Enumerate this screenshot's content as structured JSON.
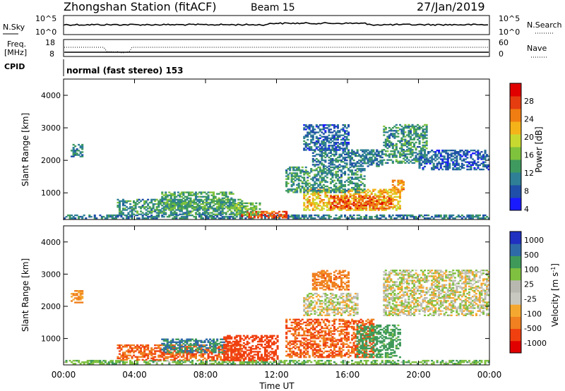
{
  "header": {
    "station": "Zhongshan Station (fitACF)",
    "beam": "Beam 15",
    "date": "27/Jan/2019"
  },
  "noise_panel": {
    "left_label": "N.Sky",
    "right_label": "N.Search",
    "left_ticks": [
      "10^5",
      "10^0"
    ],
    "right_ticks": [
      "10^5",
      "10^0"
    ]
  },
  "freq_panel": {
    "left_label_1": "Freq.",
    "left_label_2": "[MHz]",
    "left_ticks": [
      "18",
      "8"
    ],
    "right_label": "Nave",
    "right_ticks": [
      "60",
      "0"
    ]
  },
  "cpid_panel": {
    "label": "CPID",
    "text": "normal (fast stereo) 153"
  },
  "colors": {
    "power": [
      "#1a1aff",
      "#1f4fa8",
      "#2f7f96",
      "#3e9a5e",
      "#7fc23c",
      "#c7d930",
      "#f5b31a",
      "#f07d12",
      "#e53c10",
      "#e00000"
    ],
    "velocity": [
      "#e00000",
      "#f04010",
      "#f08020",
      "#f5a830",
      "#c8c8c0",
      "#b8b8b0",
      "#7fc040",
      "#3f9a5a",
      "#2f6aa8",
      "#2030c0"
    ]
  },
  "chart_data": [
    {
      "type": "heatmap",
      "title": "Power",
      "ylabel": "Slant Range [km]",
      "ylim": [
        180,
        4500
      ],
      "yticks": [
        1000,
        2000,
        3000,
        4000
      ],
      "xlim": [
        0,
        24
      ],
      "colorbar": {
        "label": "Power [dB]",
        "range": [
          0,
          32
        ],
        "ticks": [
          "4",
          "8",
          "12",
          "16",
          "20",
          "24",
          "28"
        ]
      },
      "regions": [
        {
          "t0": 0.4,
          "t1": 1.0,
          "r0": 2100,
          "r1": 2500,
          "v": 8
        },
        {
          "t0": 0.0,
          "t1": 24.0,
          "r0": 200,
          "r1": 320,
          "v": 8
        },
        {
          "t0": 3.0,
          "t1": 10.0,
          "r0": 320,
          "r1": 800,
          "v": 10
        },
        {
          "t0": 5.5,
          "t1": 9.5,
          "r0": 500,
          "r1": 1000,
          "v": 12
        },
        {
          "t0": 10.0,
          "t1": 12.5,
          "r0": 220,
          "r1": 420,
          "v": 26
        },
        {
          "t0": 9.6,
          "t1": 11.0,
          "r0": 300,
          "r1": 700,
          "v": 14
        },
        {
          "t0": 13.5,
          "t1": 19.0,
          "r0": 450,
          "r1": 1100,
          "v": 20
        },
        {
          "t0": 15.0,
          "t1": 18.5,
          "r0": 500,
          "r1": 900,
          "v": 26
        },
        {
          "t0": 12.5,
          "t1": 17.0,
          "r0": 1000,
          "r1": 1800,
          "v": 10
        },
        {
          "t0": 14.0,
          "t1": 18.0,
          "r0": 1800,
          "r1": 2300,
          "v": 8
        },
        {
          "t0": 13.5,
          "t1": 16.0,
          "r0": 2300,
          "r1": 3100,
          "v": 6
        },
        {
          "t0": 18.0,
          "t1": 20.5,
          "r0": 1900,
          "r1": 3100,
          "v": 10
        },
        {
          "t0": 20.0,
          "t1": 24.0,
          "r0": 1700,
          "r1": 2300,
          "v": 6
        },
        {
          "t0": 18.5,
          "t1": 19.2,
          "r0": 1000,
          "r1": 1400,
          "v": 22
        }
      ]
    },
    {
      "type": "heatmap",
      "title": "Velocity",
      "ylabel": "Slant Range [km]",
      "xlabel": "Time UT",
      "ylim": [
        180,
        4500
      ],
      "yticks": [
        1000,
        2000,
        3000,
        4000
      ],
      "xlim": [
        0,
        24
      ],
      "xticks": [
        "00:00",
        "04:00",
        "08:00",
        "12:00",
        "16:00",
        "20:00",
        "00:00"
      ],
      "colorbar": {
        "label": "Velocity [m s^-1]",
        "ticks": [
          "1000",
          "500",
          "100",
          "25",
          "-25",
          "-100",
          "-500",
          "-1000"
        ]
      },
      "regions": [
        {
          "t0": 0.4,
          "t1": 1.0,
          "r0": 2100,
          "r1": 2500,
          "v": -120
        },
        {
          "t0": 0.0,
          "t1": 24.0,
          "r0": 200,
          "r1": 320,
          "v": 80
        },
        {
          "t0": 3.0,
          "t1": 10.0,
          "r0": 320,
          "r1": 800,
          "v": -200
        },
        {
          "t0": 5.5,
          "t1": 9.0,
          "r0": 550,
          "r1": 1000,
          "v": 300
        },
        {
          "t0": 9.0,
          "t1": 12.0,
          "r0": 300,
          "r1": 1100,
          "v": -300
        },
        {
          "t0": 12.5,
          "t1": 17.5,
          "r0": 400,
          "r1": 1600,
          "v": -200
        },
        {
          "t0": 16.5,
          "t1": 19.0,
          "r0": 400,
          "r1": 1400,
          "v": 150
        },
        {
          "t0": 13.5,
          "t1": 16.5,
          "r0": 1700,
          "r1": 2400,
          "v": 0
        },
        {
          "t0": 18.0,
          "t1": 24.0,
          "r0": 1700,
          "r1": 3100,
          "v": 0
        },
        {
          "t0": 14.0,
          "t1": 16.0,
          "r0": 2500,
          "r1": 3100,
          "v": -150
        }
      ]
    }
  ]
}
